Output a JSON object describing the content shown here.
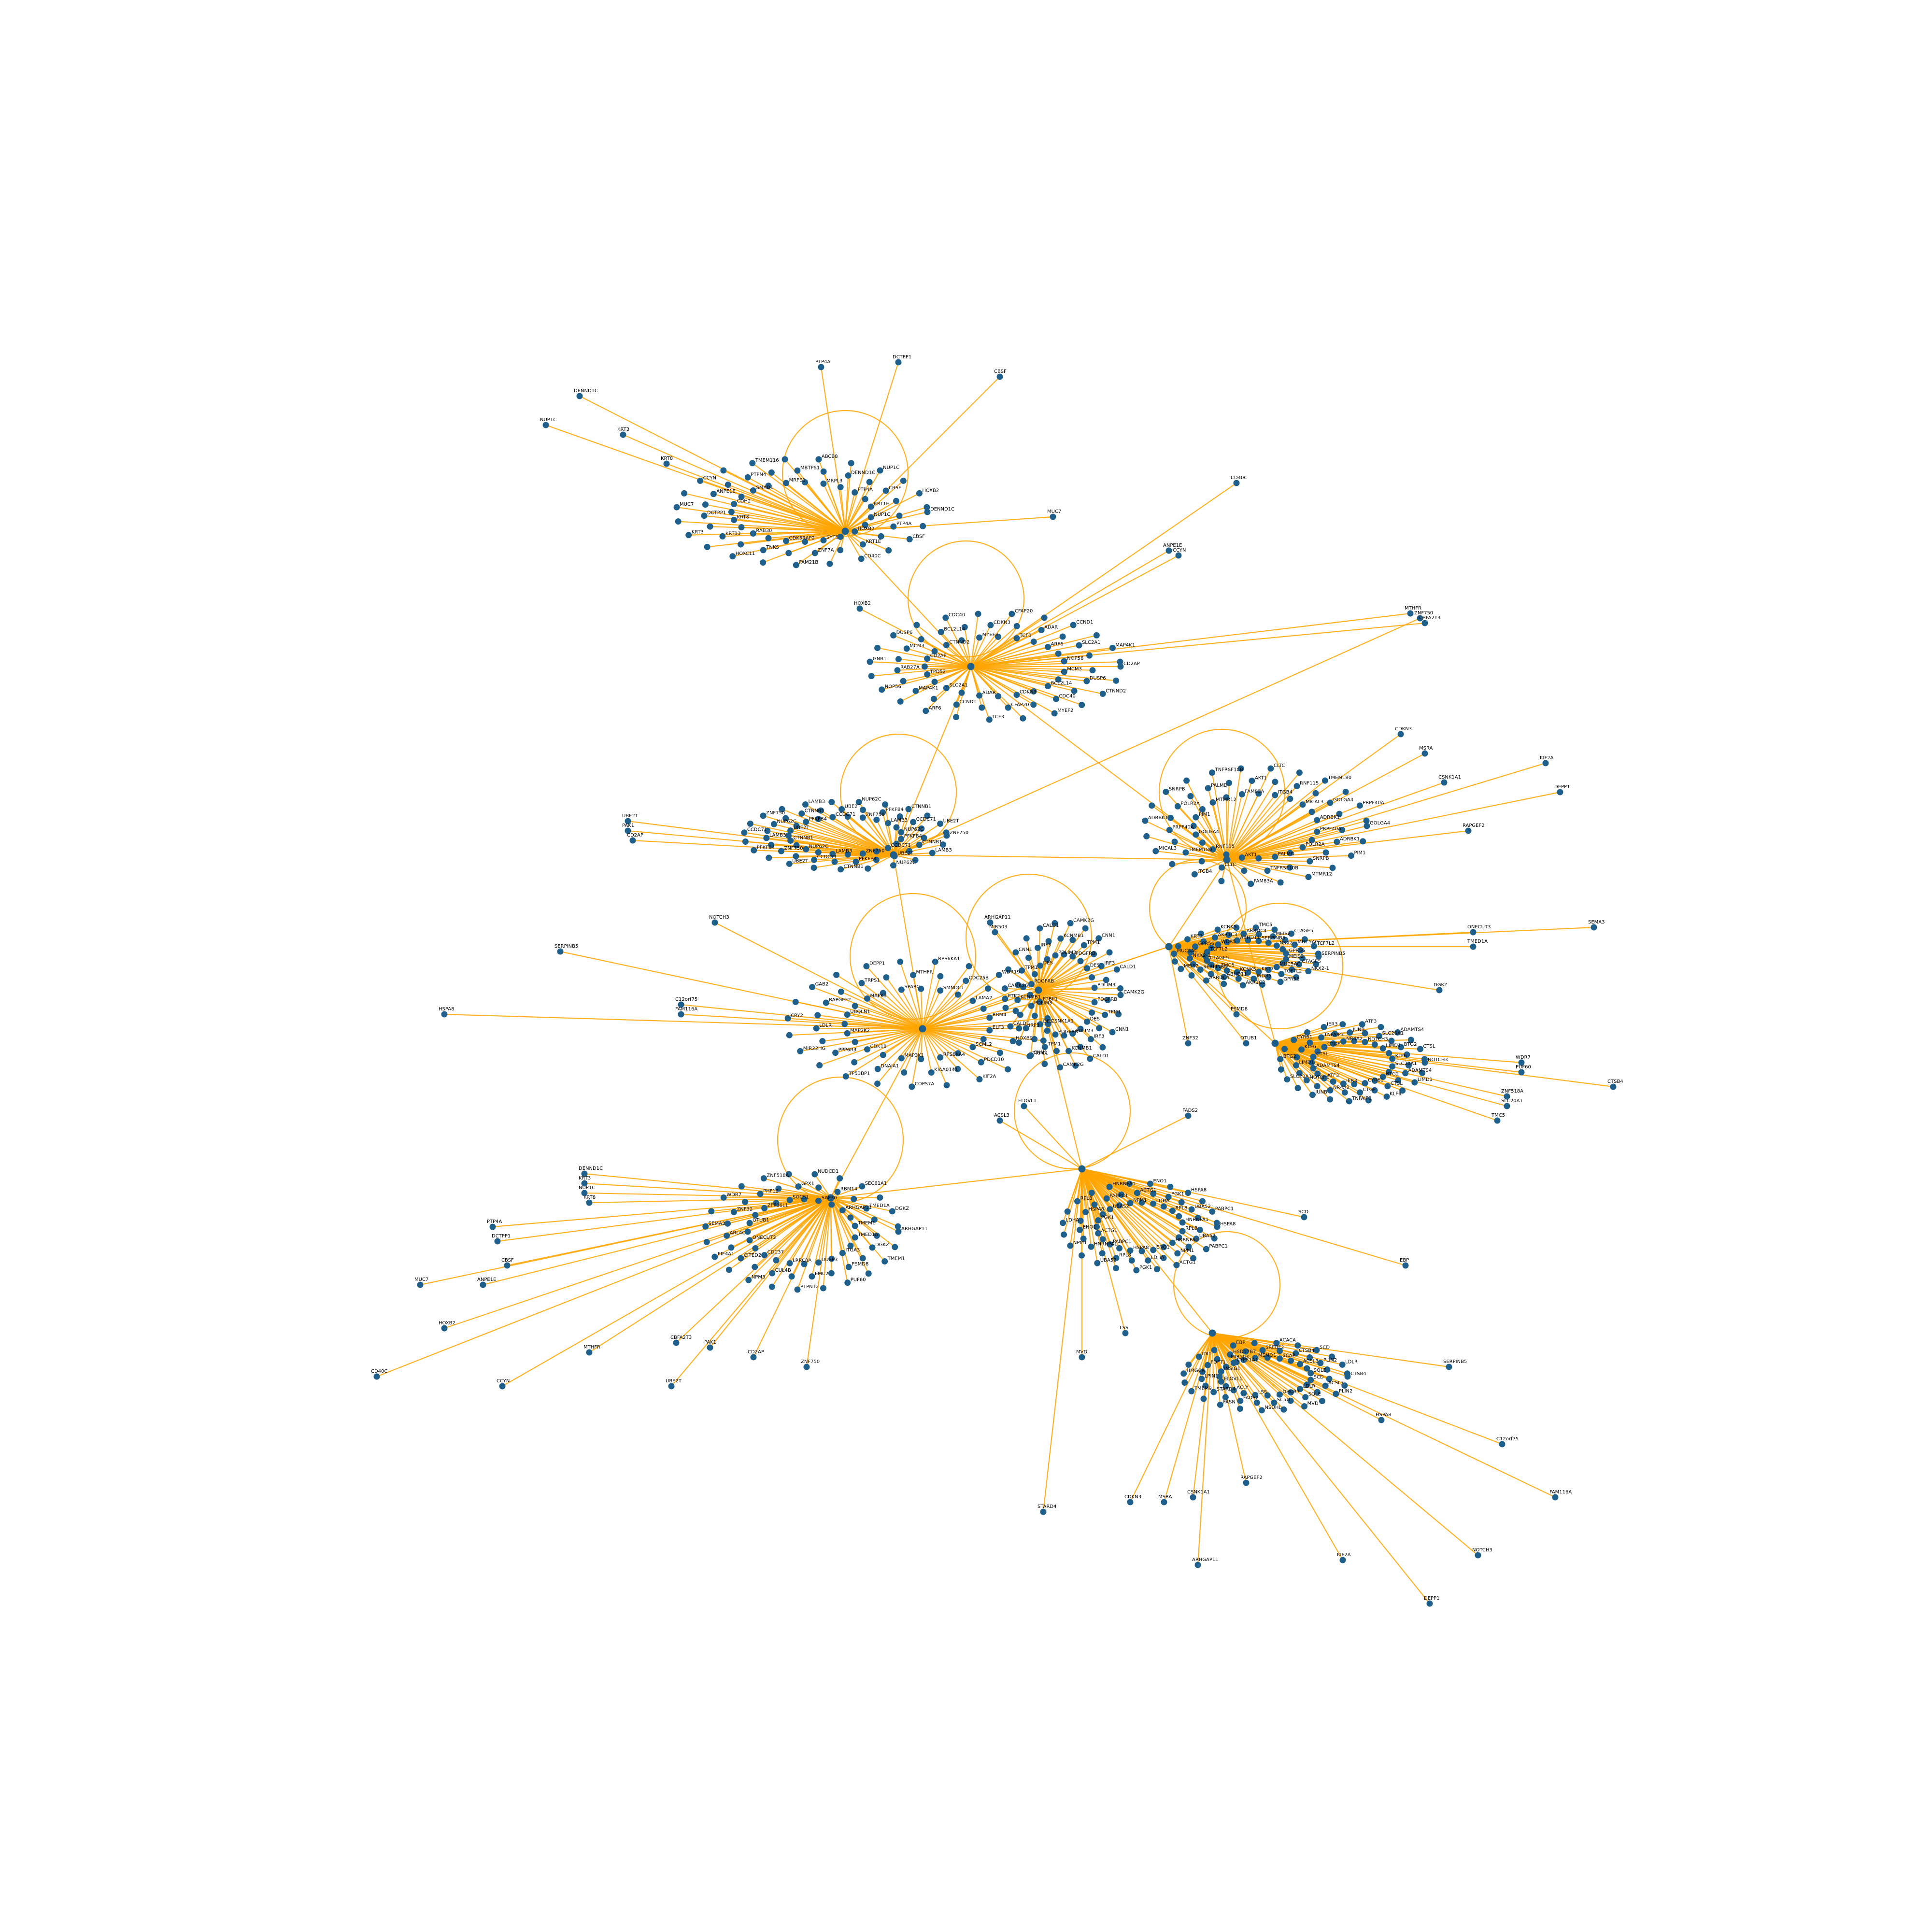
{
  "colors": {
    "edge": "#FFA500",
    "node": "#1F5F8B",
    "label": "#000000",
    "background": "#FFFFFF"
  },
  "graph": {
    "type": "network",
    "clusters": [
      {
        "hub": "",
        "members": [
          "DENND1C",
          "KRT3",
          "NUP1C",
          "KRT8",
          "PTP4A",
          "DCTPP1",
          "CBSF",
          "MUC7",
          "HOXB2",
          "CDH2",
          "KRT1E",
          "ANPE1E",
          "CD40C",
          "CCYN",
          "SYT5",
          "SMAD1",
          "ZNF7A",
          "PTPN4",
          "FAM21B",
          "TMEM116",
          "CDK5RAP2",
          "MRPS1",
          "TNKS",
          "MBTPS1",
          "HOXC11",
          "ABCB8",
          "RAB30",
          "MRPL3",
          "KRT13"
        ]
      },
      {
        "hub": "",
        "members": [
          "CD2AP",
          "ADAR",
          "MCM3",
          "CCND1",
          "DUSP6",
          "ARF6",
          "CTNND2",
          "SLC2A1",
          "BCL2L14",
          "MAP4K1",
          "CDC40",
          "NOP56",
          "MYEF2",
          "TPD52",
          "CDKN3",
          "RAB27A",
          "CFAP20",
          "GNB1",
          "TCF3"
        ]
      },
      {
        "hub": "",
        "members": [
          "ZNF750",
          "NCAPG2",
          "PFKFB4",
          "ATP5J",
          "CTNNB1",
          "RPL15",
          "LAMB3",
          "SLC38A2",
          "CCDC71",
          "TMEM60",
          "UBE2T",
          "HMGA1",
          "NUP62C",
          "CD70"
        ]
      },
      {
        "hub": "",
        "members": [
          "GOLGA4",
          "SNRNP200",
          "PRPF40A",
          "CDK11B",
          "ADRBK1",
          "CASP8",
          "PIM1",
          "DDX21",
          "POLR2A",
          "TSC22D1",
          "SNRPB",
          "TMEM132A",
          "MTMR12",
          "DNAJB12",
          "PALMD",
          "ZNF217",
          "TNFRSF10B",
          "LMO2",
          "FAM83A",
          "CD300",
          "AKT1",
          "MSRA",
          "CLTC",
          "DNMT3A",
          "ITGB4",
          "SEC13",
          "RNF115",
          "KPNA3",
          "TMEM180",
          "NFE2L3",
          "MICAL3",
          "TNFSF12A"
        ]
      },
      {
        "hub": "",
        "members": [
          "CSNK1A1",
          "RAPGEF2",
          "ELF3",
          "GAB2",
          "HOXB9",
          "MAPK3",
          "TRPC1",
          "TRPS1",
          "SCML2",
          "DEPP1",
          "PDCD10",
          "SPARC",
          "KIF2A",
          "MTHFR",
          "RPS6KA4",
          "RPS6KA1",
          "KIAA0141",
          "SMNDC1",
          "COPS7A",
          "CDC25B",
          "MAP3K1",
          "WDR19",
          "DNAJA1",
          "LAMA2",
          "TP53BP1",
          "PTK2",
          "CDK18",
          "PTBP1",
          "PPP6R3",
          "RBM4",
          "MIR22HG",
          "FAM111A",
          "MAP2K2",
          "TMEM173",
          "LDLR",
          "SLC38A9",
          "CRY2",
          "MED24",
          "UBQLN1"
        ]
      },
      {
        "hub": "",
        "members": [
          "CAMK2G",
          "LAMTOR2",
          "PDGFRB",
          "ACTA2",
          "TPM1",
          "SMTN",
          "CNN1",
          "MYL9",
          "DES",
          "TAGLN",
          "IRF3",
          "MYLK",
          "CALD1",
          "SYNPO2",
          "PDLIM3",
          "ACTG2",
          "KCNMB1",
          "CSRP1"
        ]
      },
      {
        "hub": "",
        "members": [
          "SERPINB5",
          "ACTB",
          "MEIS2",
          "GATA6",
          "CTAGE5",
          "FOXA1",
          "NKX2-1",
          "SPINK1",
          "MUC5AC",
          "FAM116A",
          "TCF7L2",
          "SOX2",
          "GPR56",
          "MUC1",
          "KRT7",
          "KRT20",
          "WDR5",
          "TMEM134",
          "AKR1C3",
          "C20orf112",
          "KCNK5",
          "BAIAP2L1",
          "ABHD11",
          "SERPINA1",
          "ARRDC4",
          "CPD",
          "TMC5",
          "STX6"
        ]
      },
      {
        "hub": "",
        "members": [
          "NOTCH3",
          "MIR484",
          "SLC20A1",
          "ADAMTS1",
          "ADAMTS4",
          "CBFA2T3",
          "LIMD1",
          "PHLDA1",
          "BTG2",
          "ELOVL6",
          "CTSL",
          "MYOF",
          "KLF6",
          "ANKRD1",
          "CYR61",
          "CCN1",
          "CTGF",
          "SERPINE1",
          "TNFAIP3",
          "ZFP36",
          "IER3",
          "NR4A1",
          "NR4A2",
          "FOSB",
          "JUNB",
          "EGR1",
          "ATF3",
          "DUSP1"
        ]
      },
      {
        "hub": "",
        "members": [
          "HSPA8",
          "CDC2",
          "RPL8",
          "EEF1A1",
          "UBA52",
          "RPS27A",
          "PABPC1",
          "TUBB",
          "HNRNPA1",
          "NCL",
          "NPM1",
          "HSP90AB1",
          "ACTG1",
          "GAPDH",
          "ENO1",
          "PKM2",
          "LDHA",
          "TPI1",
          "PGK1",
          "ALDOA"
        ]
      },
      {
        "hub": "",
        "members": [
          "ARHGAP11",
          "ONECUT3",
          "TMED1A",
          "ARL4C",
          "DGKZ",
          "SEMA3",
          "TMEM1",
          "OTUB1",
          "ITGA3",
          "ZNF32",
          "PSMD8",
          "WDR7",
          "PUF60",
          "ZFP36L1",
          "DUSP3",
          "PHF12",
          "EMC2",
          "ZNF518A",
          "PTPN12",
          "SOCS1",
          "LRRC8A",
          "GPX1",
          "CUL4B",
          "NUDCD1",
          "NPM3",
          "SAP30",
          "CDC37",
          "RBM14",
          "CITED2",
          "SEC61A1",
          "EIF4A1"
        ]
      },
      {
        "hub": "",
        "members": [
          "CTSB4",
          "TMEM9",
          "SCD",
          "ELOVL1",
          "ACSL3",
          "LPIN1",
          "PLIN2",
          "HMGCR",
          "LDLR",
          "INSIG1",
          "SQLE",
          "FDFT1",
          "MVD",
          "IDI1",
          "DHCR7",
          "CYP51A1",
          "SC5D",
          "HSD17B7",
          "NSDHL",
          "EBP",
          "LSS",
          "MSMO1",
          "FADS2",
          "SREBF2",
          "FASN",
          "ACACA",
          "ACLY",
          "SCAP",
          "STARD4"
        ]
      }
    ],
    "nodes": [
      {
        "id": "DENND1C",
        "label": "DENND1C"
      },
      {
        "id": "KRT3",
        "label": "KRT3"
      },
      {
        "id": "NUP1C",
        "label": "NUP1C"
      },
      {
        "id": "KRT8",
        "label": "KRT8"
      },
      {
        "id": "PTP4A",
        "label": "PTP4A"
      },
      {
        "id": "DCTPP1",
        "label": "DCTPP1"
      },
      {
        "id": "CBSF",
        "label": "CBSF"
      },
      {
        "id": "MUC7",
        "label": "MUC7"
      },
      {
        "id": "HOXB2",
        "label": "HOXB2"
      },
      {
        "id": "ANPE1E",
        "label": "ANPE1E"
      },
      {
        "id": "CD40C",
        "label": "CD40C"
      },
      {
        "id": "CCYN",
        "label": "CCYN"
      },
      {
        "id": "MTHFR",
        "label": "MTHFR"
      },
      {
        "id": "CBFA2T3",
        "label": "CBFA2T3"
      },
      {
        "id": "UBE2T",
        "label": "UBE2T"
      },
      {
        "id": "PAK1",
        "label": "PAK1"
      },
      {
        "id": "CD2AP",
        "label": "CD2AP"
      },
      {
        "id": "ZNF750",
        "label": "ZNF750"
      },
      {
        "id": "CDKN3",
        "label": "CDKN3"
      },
      {
        "id": "MSRA",
        "label": "MSRA"
      },
      {
        "id": "CSNK1A1",
        "label": "CSNK1A1"
      },
      {
        "id": "RAPGEF2",
        "label": "RAPGEF2"
      },
      {
        "id": "KIF2A",
        "label": "KIF2A"
      },
      {
        "id": "DEPP1",
        "label": "DEPP1"
      },
      {
        "id": "SERPINB5",
        "label": "SERPINB5"
      },
      {
        "id": "C12orf75",
        "label": "C12orf75"
      },
      {
        "id": "FAM116A",
        "label": "FAM116A"
      },
      {
        "id": "NOTCH3",
        "label": "NOTCH3"
      },
      {
        "id": "HSPA8",
        "label": "HSPA8"
      },
      {
        "id": "ARHGAP11",
        "label": "ARHGAP11"
      },
      {
        "id": "MIR503",
        "label": "MIR503"
      },
      {
        "id": "ONECUT3",
        "label": "ONECUT3"
      },
      {
        "id": "TMED1A",
        "label": "TMED1A"
      },
      {
        "id": "SEMA3",
        "label": "SEMA3"
      },
      {
        "id": "DGKZ",
        "label": "DGKZ"
      },
      {
        "id": "OTUB1",
        "label": "OTUB1"
      },
      {
        "id": "ZNF32",
        "label": "ZNF32"
      },
      {
        "id": "PSMD8",
        "label": "PSMD8"
      },
      {
        "id": "WDR7",
        "label": "WDR7"
      },
      {
        "id": "PUF60",
        "label": "PUF60"
      },
      {
        "id": "ZNF518A",
        "label": "ZNF518A"
      },
      {
        "id": "SLC20A1",
        "label": "SLC20A1"
      },
      {
        "id": "TMC5",
        "label": "TMC5"
      },
      {
        "id": "CTSB4",
        "label": "CTSB4"
      },
      {
        "id": "ELOVL1",
        "label": "ELOVL1"
      },
      {
        "id": "ACSL3",
        "label": "ACSL3"
      },
      {
        "id": "STARD4",
        "label": "STARD4"
      },
      {
        "id": "MVD",
        "label": "MVD"
      },
      {
        "id": "LSS",
        "label": "LSS"
      },
      {
        "id": "EBP",
        "label": "EBP"
      },
      {
        "id": "SCD",
        "label": "SCD"
      },
      {
        "id": "FADS2",
        "label": "FADS2"
      }
    ]
  }
}
